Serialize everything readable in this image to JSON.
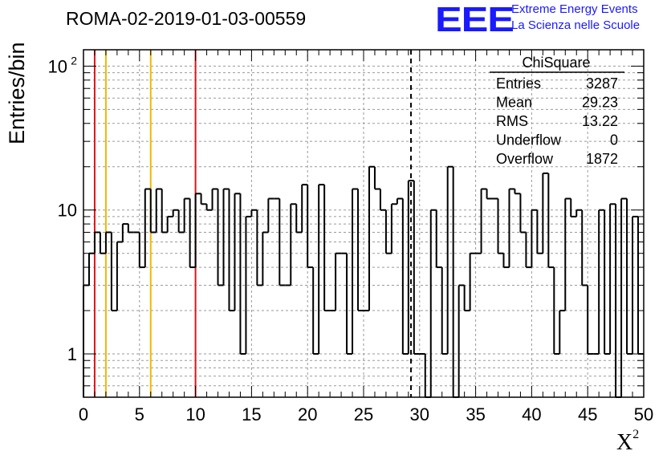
{
  "header": {
    "run_title": "ROMA-02-2019-01-03-00559",
    "logo_text": "EEE",
    "logo_line1": "Extreme Energy Events",
    "logo_line2": "La Scienza nelle Scuole"
  },
  "colors": {
    "histogram": "#000000",
    "grid": "#9a9a9a",
    "red_line": "#e0141b",
    "orange_line": "#f2b705",
    "logo": "#1a1aff"
  },
  "chart_data": {
    "type": "bar",
    "subtype": "step-histogram",
    "title": "",
    "xlabel_base": "X",
    "xlabel_sup": "2",
    "ylabel": "Entries/bin",
    "xlim": [
      0,
      50
    ],
    "ylim": [
      0.5,
      130
    ],
    "yscale": "log",
    "grid": true,
    "bin_width": 0.5,
    "x_ticks": [
      0,
      5,
      10,
      15,
      20,
      25,
      30,
      35,
      40,
      45,
      50
    ],
    "y_ticks": [
      {
        "value": 1,
        "label": "1"
      },
      {
        "value": 10,
        "label": "10"
      },
      {
        "value": 100,
        "label": "10",
        "sup": "2"
      }
    ],
    "values": [
      3,
      5,
      7,
      5,
      7,
      2,
      6,
      8,
      7,
      7,
      4,
      14,
      7,
      14,
      7,
      9,
      10,
      7,
      12,
      4,
      13,
      11,
      10,
      14,
      3,
      14,
      2,
      13,
      1,
      9,
      10,
      3,
      7,
      12,
      12,
      3,
      3,
      11,
      7,
      15,
      4,
      1,
      15,
      2,
      2,
      5,
      5,
      1,
      14,
      2,
      2,
      20,
      14,
      10,
      5,
      11,
      12,
      1,
      16,
      1,
      1,
      0,
      10,
      4,
      1,
      20,
      0,
      3,
      2,
      5,
      5,
      14,
      12,
      12,
      5,
      4,
      14,
      13,
      7,
      4,
      10,
      5,
      18,
      4,
      1,
      2,
      12,
      9,
      10,
      3,
      1,
      1,
      10,
      1,
      11,
      0,
      12,
      1,
      9,
      1
    ],
    "vertical_lines": [
      {
        "x": 1,
        "color": "red",
        "style": "solid"
      },
      {
        "x": 2,
        "color": "orange",
        "style": "solid"
      },
      {
        "x": 6,
        "color": "orange",
        "style": "solid"
      },
      {
        "x": 10,
        "color": "red",
        "style": "solid"
      },
      {
        "x": 29.23,
        "color": "black",
        "style": "dashed"
      }
    ],
    "stats_box": {
      "title": "ChiSquare",
      "rows": [
        {
          "label": "Entries",
          "value": "3287"
        },
        {
          "label": "Mean",
          "value": "29.23"
        },
        {
          "label": "RMS",
          "value": "13.22"
        },
        {
          "label": "Underflow",
          "value": "0"
        },
        {
          "label": "Overflow",
          "value": "1872"
        }
      ]
    }
  }
}
